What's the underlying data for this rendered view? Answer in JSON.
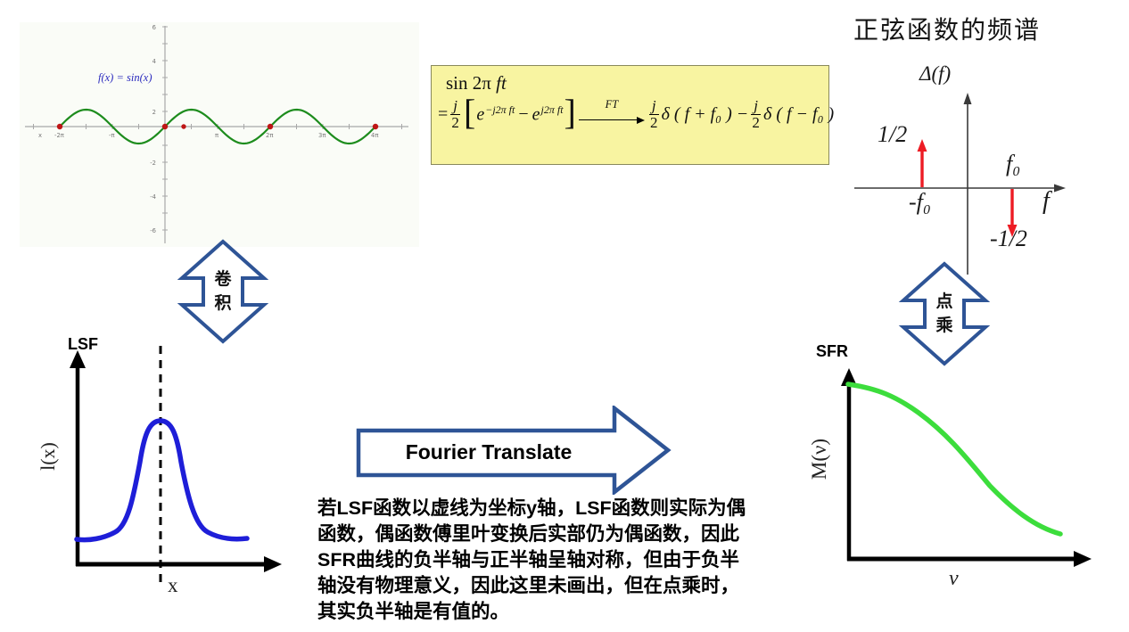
{
  "sine_plot": {
    "function_label": "f(x) = sin(x)",
    "x_ticks": [
      "x",
      "-2π",
      "-π",
      "π",
      "2π",
      "3π",
      "4π"
    ],
    "y_ticks": [
      "6",
      "4",
      "2",
      "-2",
      "-4",
      "-6"
    ]
  },
  "formula": {
    "line1_roman": "sin 2π ",
    "line1_italic": "ft",
    "eq": "=",
    "frac_num": "j",
    "frac_den": "2",
    "lbracket": "[",
    "rbracket": "]",
    "e_base": "e",
    "exp1": "−j2π ft",
    "minus": "−",
    "exp2": "j2π ft",
    "ft_label": "FT",
    "term1": "δ ( f + f₀ ) −",
    "term2": "δ ( f − f₀ )"
  },
  "spectrum": {
    "title": "正弦函数的频谱",
    "y_axis_label": "Δ(f)",
    "x_axis_label": "f",
    "pos_impulse_value": "1/2",
    "neg_impulse_value": "-1/2",
    "neg_freq_label": "-f₀",
    "pos_freq_label": "f₀"
  },
  "arrows": {
    "convolution_chars": [
      "卷",
      "积"
    ],
    "dot_product_chars": [
      "点",
      "乘"
    ],
    "fourier_label": "Fourier Translate"
  },
  "lsf_plot": {
    "title": "LSF",
    "y_axis_label": "l(x)",
    "x_axis_label": "x"
  },
  "sfr_plot": {
    "title": "SFR",
    "y_axis_label": "M(ν)",
    "x_axis_label": "ν"
  },
  "note": {
    "text": "若LSF函数以虚线为坐标y轴，LSF函数则实际为偶\n函数，偶函数傅里叶变换后实部仍为偶函数，因此\nSFR曲线的负半轴与正半轴呈轴对称，但由于负半\n轴没有物理意义，因此这里未画出，但在点乘时，\n其实负半轴是有值的。"
  },
  "colors": {
    "sine_green": "#1d8c1d",
    "sfr_green": "#3cdd3c",
    "lsf_blue": "#1e1ed8",
    "impulse_red": "#ed1c24",
    "arrow_navy": "#2e5496",
    "formula_bg": "#f8f4a1"
  }
}
